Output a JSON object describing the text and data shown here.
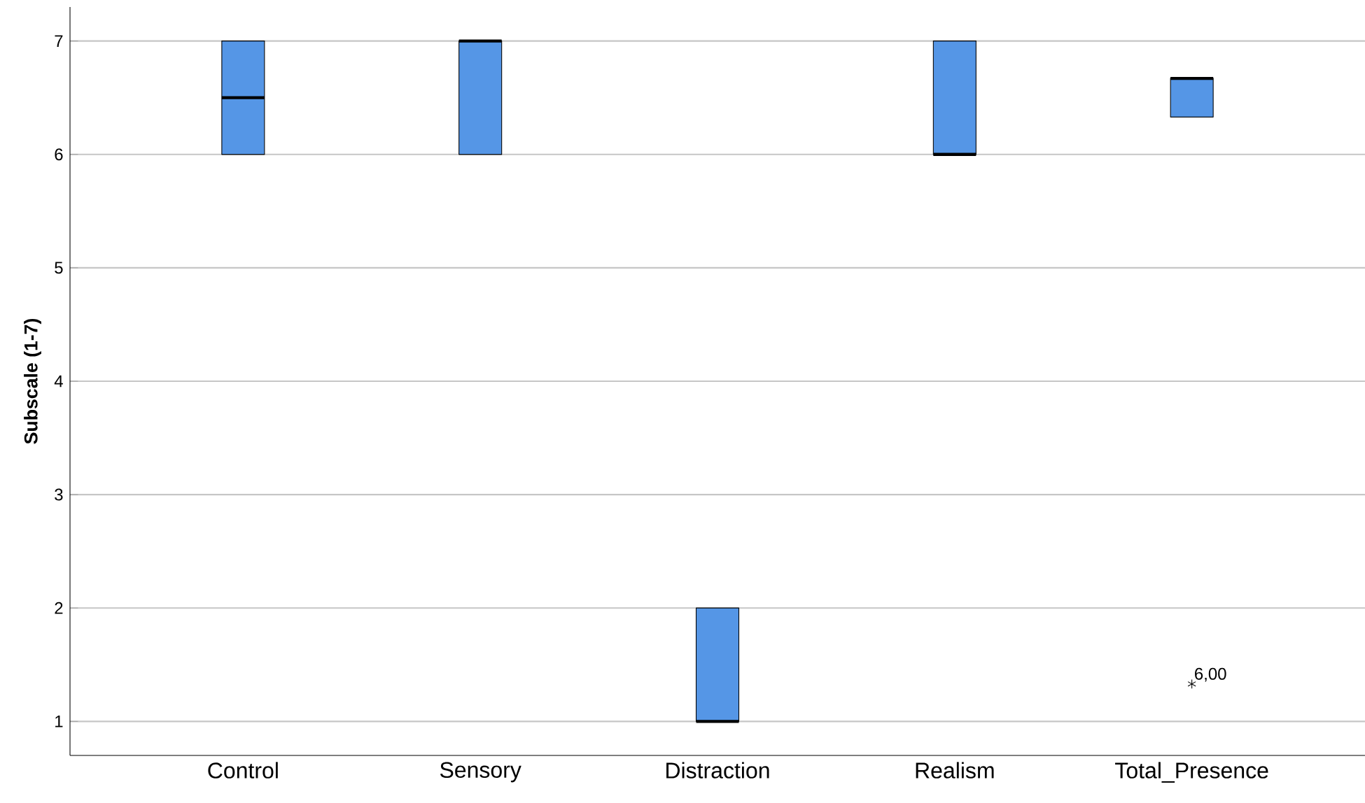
{
  "chart_data": {
    "type": "box",
    "ylabel": "Subscale (1-7)",
    "categories": [
      "Control",
      "Sensory",
      "Distraction",
      "Realism",
      "Total_Presence"
    ],
    "boxes": [
      {
        "low": 6,
        "q1": 6,
        "median": 6.5,
        "q3": 7,
        "high": 7
      },
      {
        "low": 6,
        "q1": 6,
        "median": 7,
        "q3": 7,
        "high": 7
      },
      {
        "low": 1,
        "q1": 1,
        "median": 1,
        "q3": 2,
        "high": 2
      },
      {
        "low": 6,
        "q1": 6,
        "median": 6,
        "q3": 7,
        "high": 7
      },
      {
        "low": 6.33,
        "q1": 6.33,
        "median": 6.67,
        "q3": 6.67,
        "high": 6.67,
        "outliers": [
          1.33
        ]
      }
    ],
    "color": "#5596e6",
    "ylim": [
      0.7,
      7.3
    ],
    "yticks": [
      1,
      2,
      3,
      4,
      5,
      6,
      7
    ],
    "grid": "y",
    "marker": "star",
    "annotations": [
      "6,00"
    ]
  }
}
